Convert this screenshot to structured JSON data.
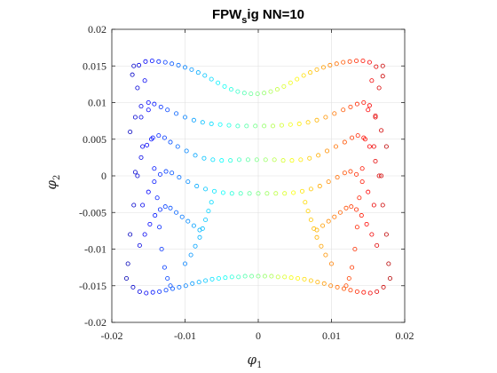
{
  "chart_data": {
    "type": "scatter",
    "title": {
      "main_before": "FPW",
      "subscript": "s",
      "main_after": "ig NN=10"
    },
    "xlabel": {
      "symbol": "φ",
      "subscript": "1"
    },
    "ylabel": {
      "symbol": "φ",
      "subscript": "2"
    },
    "xlim": [
      -0.02,
      0.02
    ],
    "ylim": [
      -0.02,
      0.02
    ],
    "xticks": [
      -0.02,
      -0.01,
      0,
      0.01,
      0.02
    ],
    "xtick_labels": [
      "-0.02",
      "-0.01",
      "0",
      "0.01",
      "0.02"
    ],
    "yticks": [
      -0.02,
      -0.015,
      -0.01,
      -0.005,
      0,
      0.005,
      0.01,
      0.015,
      0.02
    ],
    "ytick_labels": [
      "-0.02",
      "-0.015",
      "-0.01",
      "-0.005",
      "0",
      "0.005",
      "0.01",
      "0.015",
      "0.02"
    ],
    "grid": true,
    "marker": "open-circle",
    "colormap": "jet",
    "color_by": "x",
    "series": [
      {
        "x": [
          -0.0172,
          -0.0163,
          -0.0154,
          -0.0145,
          -0.0136,
          -0.0127,
          -0.0118,
          -0.0109,
          -0.01,
          -0.0091,
          -0.0082,
          -0.0073,
          -0.0064,
          -0.0055,
          -0.0046,
          -0.0037,
          -0.0028,
          -0.0019,
          -0.001,
          -0.0001,
          0.0008,
          0.0017,
          0.0026,
          0.0035,
          0.0044,
          0.0053,
          0.0062,
          0.0071,
          0.008,
          0.0089,
          0.0098,
          0.0107,
          0.0116,
          0.0125,
          0.0134,
          0.0143,
          0.0152,
          0.0161,
          0.017
        ],
        "y": [
          0.0138,
          0.0151,
          0.0156,
          0.0157,
          0.0156,
          0.0155,
          0.0153,
          0.0151,
          0.0148,
          0.0145,
          0.0141,
          0.0137,
          0.0132,
          0.0127,
          0.0122,
          0.0118,
          0.0115,
          0.0113,
          0.0112,
          0.0112,
          0.0113,
          0.0115,
          0.0118,
          0.0122,
          0.0127,
          0.0132,
          0.0137,
          0.0141,
          0.0145,
          0.0148,
          0.0151,
          0.0153,
          0.0155,
          0.0156,
          0.0157,
          0.0157,
          0.0155,
          0.0149,
          0.0136
        ]
      },
      {
        "x": [
          -0.018,
          -0.0171,
          -0.0162,
          -0.0153,
          -0.0144,
          -0.0135,
          -0.0126,
          -0.0117,
          -0.0108,
          -0.0099,
          -0.009,
          -0.0081,
          -0.0072,
          -0.0063,
          -0.0054,
          -0.0045,
          -0.0036,
          -0.0027,
          -0.0018,
          -0.0009,
          0.0,
          0.0009,
          0.0018,
          0.0027,
          0.0036,
          0.0045,
          0.0054,
          0.0063,
          0.0072,
          0.0081,
          0.009,
          0.0099,
          0.0108,
          0.0117,
          0.0126,
          0.0135,
          0.0144,
          0.0153,
          0.0162,
          0.0171,
          0.018
        ],
        "y": [
          -0.014,
          -0.0152,
          -0.0158,
          -0.016,
          -0.0159,
          -0.0158,
          -0.0156,
          -0.0154,
          -0.0152,
          -0.015,
          -0.0147,
          -0.0145,
          -0.0143,
          -0.0141,
          -0.014,
          -0.0139,
          -0.0138,
          -0.0138,
          -0.0137,
          -0.0137,
          -0.0137,
          -0.0137,
          -0.0137,
          -0.0138,
          -0.0138,
          -0.0139,
          -0.014,
          -0.0141,
          -0.0143,
          -0.0145,
          -0.0147,
          -0.015,
          -0.0152,
          -0.0154,
          -0.0156,
          -0.0158,
          -0.0159,
          -0.016,
          -0.0158,
          -0.0152,
          -0.014
        ]
      },
      {
        "x": [
          -0.0175,
          -0.0168,
          -0.016,
          -0.015,
          -0.0142,
          -0.0133,
          -0.0124,
          -0.0112,
          -0.01,
          -0.0088,
          -0.0076,
          -0.0064,
          -0.0052,
          -0.004,
          -0.0028,
          -0.0016,
          -0.0004,
          0.0008,
          0.002,
          0.0032,
          0.0044,
          0.0056,
          0.0068,
          0.008,
          0.0092,
          0.0104,
          0.0116,
          0.0126,
          0.0135,
          0.0144,
          0.0152,
          0.016,
          0.0168,
          0.0175
        ],
        "y": [
          0.006,
          0.008,
          0.0095,
          0.01,
          0.0098,
          0.0094,
          0.009,
          0.0085,
          0.008,
          0.0076,
          0.0073,
          0.0071,
          0.007,
          0.0069,
          0.0068,
          0.0068,
          0.0068,
          0.0068,
          0.0068,
          0.0069,
          0.007,
          0.0071,
          0.0073,
          0.0076,
          0.008,
          0.0085,
          0.009,
          0.0094,
          0.0098,
          0.01,
          0.0096,
          0.0082,
          0.0062,
          0.004
        ]
      },
      {
        "x": [
          -0.0168,
          -0.016,
          -0.0152,
          -0.0144,
          -0.0136,
          -0.0128,
          -0.012,
          -0.011,
          -0.0098,
          -0.0086,
          -0.0074,
          -0.0062,
          -0.005,
          -0.0038,
          -0.0026,
          -0.0014,
          -0.0002,
          0.001,
          0.0022,
          0.0034,
          0.0046,
          0.0058,
          0.007,
          0.0082,
          0.0094,
          0.0106,
          0.0118,
          0.0128,
          0.0136,
          0.0144,
          0.0152,
          0.016,
          0.0168
        ],
        "y": [
          0.0005,
          0.0025,
          0.0042,
          0.0052,
          0.0055,
          0.0052,
          0.0046,
          0.004,
          0.0034,
          0.0028,
          0.0024,
          0.0022,
          0.0021,
          0.0021,
          0.0022,
          0.0022,
          0.0022,
          0.0022,
          0.0022,
          0.0021,
          0.0021,
          0.0022,
          0.0024,
          0.0028,
          0.0034,
          0.004,
          0.0046,
          0.0052,
          0.0055,
          0.0052,
          0.004,
          0.002,
          0.0
        ]
      },
      {
        "x": [
          -0.0158,
          -0.015,
          -0.0142,
          -0.0134,
          -0.0126,
          -0.0118,
          -0.0108,
          -0.0096,
          -0.0084,
          -0.0072,
          -0.006,
          -0.0048,
          -0.0036,
          -0.0024,
          -0.0012,
          0.0,
          0.0012,
          0.0024,
          0.0036,
          0.0048,
          0.006,
          0.0072,
          0.0084,
          0.0096,
          0.0108,
          0.0118,
          0.0126,
          0.0134,
          0.0142,
          0.015,
          0.0158
        ],
        "y": [
          -0.004,
          -0.0022,
          -0.0008,
          0.0002,
          0.0006,
          0.0004,
          -0.0002,
          -0.0008,
          -0.0014,
          -0.0018,
          -0.0021,
          -0.0023,
          -0.0024,
          -0.0024,
          -0.0024,
          -0.0024,
          -0.0024,
          -0.0024,
          -0.0024,
          -0.0023,
          -0.0021,
          -0.0018,
          -0.0014,
          -0.0008,
          -0.0002,
          0.0004,
          0.0006,
          0.0002,
          -0.0008,
          -0.0022,
          -0.004
        ]
      },
      {
        "x": [
          -0.0162,
          -0.0155,
          -0.0148,
          -0.0141,
          -0.0134,
          -0.0127,
          -0.012,
          -0.0112,
          -0.0104,
          -0.0096,
          -0.0088,
          -0.008,
          0.008,
          0.0088,
          0.0096,
          0.0104,
          0.0112,
          0.012,
          0.0127,
          0.0134,
          0.0141,
          0.0148,
          0.0155,
          0.0162
        ],
        "y": [
          -0.0095,
          -0.008,
          -0.0066,
          -0.0054,
          -0.0046,
          -0.0042,
          -0.0044,
          -0.005,
          -0.0056,
          -0.0062,
          -0.0068,
          -0.0074,
          -0.0074,
          -0.0068,
          -0.0062,
          -0.0056,
          -0.005,
          -0.0044,
          -0.0042,
          -0.0046,
          -0.0054,
          -0.0066,
          -0.008,
          -0.0095
        ]
      },
      {
        "x": [
          -0.017,
          -0.0165,
          -0.016,
          -0.0158,
          -0.0165,
          -0.017,
          -0.0175,
          -0.0178,
          -0.0155,
          -0.015,
          -0.0146,
          -0.0142,
          -0.0138,
          -0.0135,
          -0.0132,
          -0.0128,
          -0.0124,
          -0.012
        ],
        "y": [
          0.015,
          0.012,
          0.008,
          0.004,
          0.0,
          -0.004,
          -0.008,
          -0.012,
          0.013,
          0.009,
          0.005,
          0.001,
          -0.003,
          -0.007,
          -0.01,
          -0.0125,
          -0.014,
          -0.015
        ]
      },
      {
        "x": [
          0.017,
          0.0165,
          0.016,
          0.0158,
          0.0165,
          0.017,
          0.0175,
          0.0178,
          0.0155,
          0.015,
          0.0146,
          0.0142,
          0.0138,
          0.0135,
          0.0132,
          0.0128,
          0.0124,
          0.012
        ],
        "y": [
          0.015,
          0.012,
          0.008,
          0.004,
          0.0,
          -0.004,
          -0.008,
          -0.012,
          0.013,
          0.009,
          0.005,
          0.001,
          -0.003,
          -0.007,
          -0.01,
          -0.0125,
          -0.014,
          -0.015
        ]
      },
      {
        "x": [
          -0.01,
          -0.0092,
          -0.0086,
          -0.008,
          -0.0076,
          -0.0072,
          -0.0068,
          -0.0064,
          0.0064,
          0.0068,
          0.0072,
          0.0076,
          0.008,
          0.0086,
          0.0092,
          0.01
        ],
        "y": [
          -0.012,
          -0.0108,
          -0.0096,
          -0.0084,
          -0.0072,
          -0.006,
          -0.0048,
          -0.0036,
          -0.0036,
          -0.0048,
          -0.006,
          -0.0072,
          -0.0084,
          -0.0096,
          -0.0108,
          -0.012
        ]
      }
    ]
  }
}
